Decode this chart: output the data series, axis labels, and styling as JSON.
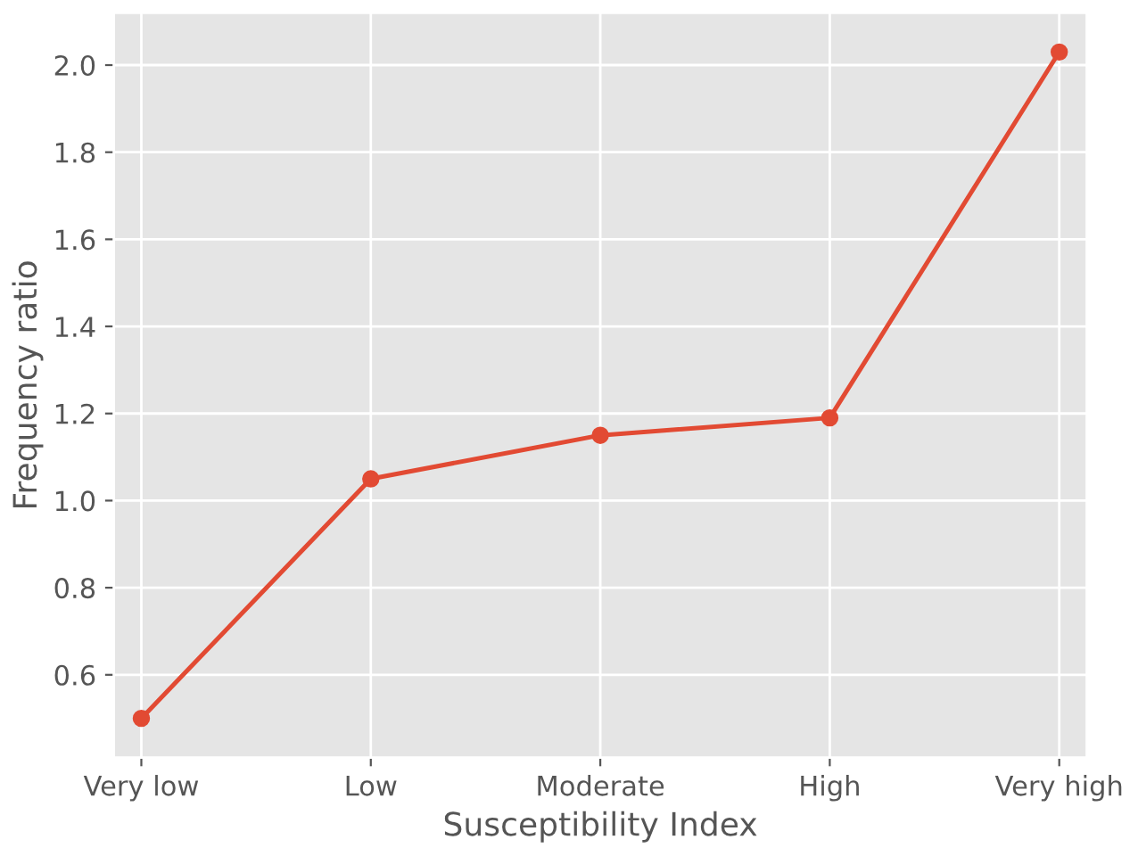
{
  "chart_data": {
    "type": "line",
    "xlabel": "Susceptibility Index",
    "ylabel": "Frequency ratio",
    "categories": [
      "Very low",
      "Low",
      "Moderate",
      "High",
      "Very high"
    ],
    "series": [
      {
        "color": "#e24a33",
        "values": [
          0.5,
          1.05,
          1.15,
          1.19,
          2.03
        ]
      }
    ],
    "ylim": [
      0.41,
      2.12
    ],
    "yticks": [
      0.6,
      0.8,
      {
        "value": 1,
        "label": "1.0"
      },
      1.2,
      1.4,
      1.6,
      1.8,
      {
        "value": 2,
        "label": "2.0"
      }
    ],
    "grid": true,
    "marker": "circle",
    "line_style": "solid"
  }
}
